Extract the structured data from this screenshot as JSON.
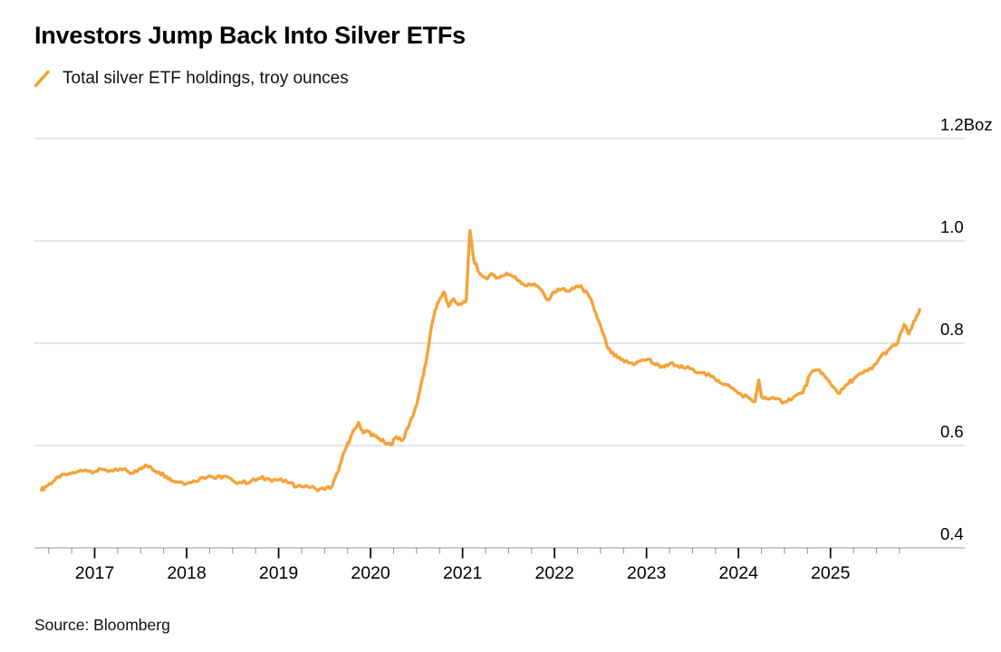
{
  "header": {
    "title": "Investors Jump Back Into Silver ETFs"
  },
  "legend": {
    "label": "Total silver ETF holdings, troy ounces"
  },
  "source": "Source: Bloomberg",
  "colors": {
    "line": "#F5A23A",
    "grid": "#D7D7D7",
    "axis": "#B8B8B8",
    "tick_major": "#000000",
    "tick_minor": "#9B9B9B",
    "text": "#000000"
  },
  "chart_data": {
    "type": "line",
    "title": "Investors Jump Back Into Silver ETFs",
    "legend_entries": [
      "Total silver ETF holdings, troy ounces"
    ],
    "legend_position": "top-left",
    "grid": "horizontal",
    "unit": "Boz",
    "x_axis": {
      "range": [
        2016.345,
        2026.46
      ],
      "major_ticks": [
        2017,
        2018,
        2019,
        2020,
        2021,
        2022,
        2023,
        2024,
        2025
      ],
      "major_tick_labels": [
        "2017",
        "2018",
        "2019",
        "2020",
        "2021",
        "2022",
        "2023",
        "2024",
        "2025"
      ],
      "minor_tick_start": 2016.5,
      "minor_tick_end": 2025.75,
      "minor_tick_step": 0.25
    },
    "y_axis": {
      "range": [
        0.4,
        1.2
      ],
      "side": "right",
      "ticks": [
        {
          "v": 0.4,
          "label": "0.4"
        },
        {
          "v": 0.6,
          "label": "0.6"
        },
        {
          "v": 0.8,
          "label": "0.8"
        },
        {
          "v": 1.0,
          "label": "1.0"
        },
        {
          "v": 1.2,
          "label": "1.2Boz"
        }
      ]
    },
    "series": [
      {
        "name": "Total silver ETF holdings, troy ounces",
        "color": "#F5A23A",
        "x": [
          2016.42,
          2016.47,
          2016.55,
          2016.62,
          2016.72,
          2016.8,
          2016.9,
          2017.0,
          2017.1,
          2017.2,
          2017.3,
          2017.42,
          2017.5,
          2017.55,
          2017.62,
          2017.7,
          2017.78,
          2017.85,
          2017.95,
          2018.05,
          2018.15,
          2018.25,
          2018.32,
          2018.4,
          2018.5,
          2018.6,
          2018.7,
          2018.8,
          2018.9,
          2019.0,
          2019.1,
          2019.2,
          2019.3,
          2019.4,
          2019.5,
          2019.58,
          2019.65,
          2019.72,
          2019.78,
          2019.82,
          2019.87,
          2019.92,
          2019.97,
          2020.05,
          2020.1,
          2020.17,
          2020.22,
          2020.28,
          2020.35,
          2020.42,
          2020.5,
          2020.55,
          2020.6,
          2020.65,
          2020.7,
          2020.75,
          2020.8,
          2020.85,
          2020.9,
          2020.95,
          2021.0,
          2021.04,
          2021.08,
          2021.12,
          2021.17,
          2021.25,
          2021.33,
          2021.4,
          2021.48,
          2021.55,
          2021.62,
          2021.7,
          2021.78,
          2021.85,
          2021.92,
          2022.0,
          2022.08,
          2022.17,
          2022.25,
          2022.3,
          2022.38,
          2022.45,
          2022.52,
          2022.58,
          2022.65,
          2022.72,
          2022.8,
          2022.88,
          2022.95,
          2023.02,
          2023.1,
          2023.17,
          2023.25,
          2023.32,
          2023.4,
          2023.5,
          2023.6,
          2023.7,
          2023.78,
          2023.85,
          2023.92,
          2024.0,
          2024.1,
          2024.18,
          2024.22,
          2024.25,
          2024.3,
          2024.4,
          2024.5,
          2024.6,
          2024.7,
          2024.78,
          2024.88,
          2024.95,
          2025.02,
          2025.1,
          2025.18,
          2025.25,
          2025.35,
          2025.45,
          2025.55,
          2025.65,
          2025.73,
          2025.8,
          2025.85,
          2025.92,
          2025.97
        ],
        "values": [
          0.513,
          0.52,
          0.53,
          0.538,
          0.545,
          0.548,
          0.552,
          0.549,
          0.553,
          0.55,
          0.553,
          0.546,
          0.556,
          0.562,
          0.555,
          0.548,
          0.54,
          0.531,
          0.528,
          0.527,
          0.537,
          0.541,
          0.536,
          0.54,
          0.532,
          0.527,
          0.53,
          0.536,
          0.534,
          0.533,
          0.527,
          0.52,
          0.522,
          0.516,
          0.514,
          0.52,
          0.55,
          0.59,
          0.615,
          0.63,
          0.645,
          0.625,
          0.628,
          0.618,
          0.612,
          0.604,
          0.601,
          0.617,
          0.611,
          0.64,
          0.68,
          0.72,
          0.76,
          0.82,
          0.865,
          0.886,
          0.9,
          0.872,
          0.887,
          0.875,
          0.878,
          0.885,
          1.02,
          0.965,
          0.94,
          0.928,
          0.934,
          0.928,
          0.937,
          0.93,
          0.922,
          0.912,
          0.916,
          0.905,
          0.885,
          0.9,
          0.906,
          0.902,
          0.912,
          0.908,
          0.89,
          0.858,
          0.822,
          0.79,
          0.775,
          0.768,
          0.762,
          0.76,
          0.767,
          0.769,
          0.758,
          0.755,
          0.76,
          0.756,
          0.752,
          0.75,
          0.742,
          0.735,
          0.727,
          0.72,
          0.713,
          0.702,
          0.695,
          0.686,
          0.728,
          0.695,
          0.692,
          0.691,
          0.685,
          0.695,
          0.703,
          0.74,
          0.748,
          0.732,
          0.716,
          0.702,
          0.72,
          0.73,
          0.742,
          0.75,
          0.775,
          0.79,
          0.8,
          0.837,
          0.818,
          0.845,
          0.866
        ]
      }
    ]
  }
}
